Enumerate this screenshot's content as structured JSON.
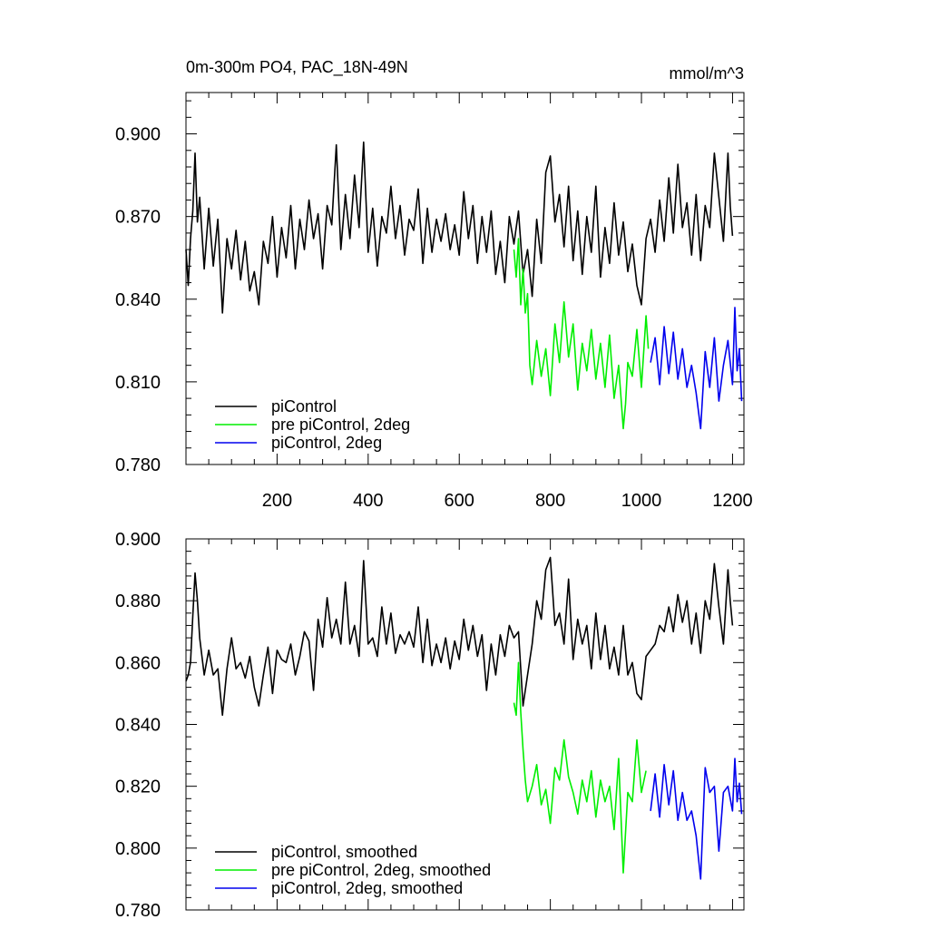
{
  "chart_data": [
    {
      "type": "line",
      "title": "0m-300m PO4, PAC_18N-49N",
      "units": "mmol/m^3",
      "xlim": [
        0,
        1225
      ],
      "ylim": [
        0.78,
        0.915
      ],
      "xticks": [
        200,
        400,
        600,
        800,
        1000,
        1200
      ],
      "yticks": [
        0.78,
        0.81,
        0.84,
        0.87,
        0.9
      ],
      "ytick_labels": [
        "0.780",
        "0.810",
        "0.840",
        "0.870",
        "0.900"
      ],
      "xtick_labels": [
        "200",
        "400",
        "600",
        "800",
        "1000",
        "1200"
      ],
      "legend_position": "bottom-left",
      "series": [
        {
          "name": "piControl",
          "color": "#000000",
          "x": [
            0,
            5,
            10,
            15,
            20,
            25,
            30,
            40,
            50,
            60,
            70,
            80,
            90,
            100,
            110,
            120,
            130,
            140,
            150,
            160,
            170,
            180,
            190,
            200,
            210,
            220,
            230,
            240,
            250,
            260,
            270,
            280,
            290,
            300,
            310,
            320,
            330,
            340,
            350,
            360,
            370,
            380,
            390,
            400,
            410,
            420,
            430,
            440,
            450,
            460,
            470,
            480,
            490,
            500,
            510,
            520,
            530,
            540,
            550,
            560,
            570,
            580,
            590,
            600,
            610,
            620,
            630,
            640,
            650,
            660,
            670,
            680,
            690,
            700,
            710,
            720,
            730,
            740,
            750,
            760,
            770,
            780,
            790,
            800,
            810,
            820,
            830,
            840,
            850,
            860,
            870,
            880,
            890,
            900,
            910,
            920,
            930,
            940,
            950,
            960,
            970,
            980,
            990,
            1000,
            1010,
            1020,
            1030,
            1040,
            1050,
            1060,
            1070,
            1080,
            1090,
            1100,
            1110,
            1120,
            1130,
            1140,
            1150,
            1160,
            1170,
            1180,
            1190,
            1195,
            1200
          ],
          "values": [
            0.858,
            0.845,
            0.862,
            0.872,
            0.893,
            0.868,
            0.877,
            0.851,
            0.873,
            0.852,
            0.869,
            0.835,
            0.862,
            0.851,
            0.865,
            0.847,
            0.861,
            0.843,
            0.85,
            0.838,
            0.861,
            0.853,
            0.87,
            0.848,
            0.866,
            0.855,
            0.874,
            0.851,
            0.869,
            0.858,
            0.876,
            0.862,
            0.871,
            0.851,
            0.874,
            0.867,
            0.896,
            0.858,
            0.878,
            0.862,
            0.885,
            0.866,
            0.897,
            0.857,
            0.873,
            0.852,
            0.87,
            0.864,
            0.881,
            0.862,
            0.874,
            0.856,
            0.869,
            0.865,
            0.88,
            0.853,
            0.873,
            0.857,
            0.869,
            0.861,
            0.871,
            0.858,
            0.867,
            0.856,
            0.879,
            0.862,
            0.874,
            0.853,
            0.87,
            0.857,
            0.872,
            0.849,
            0.861,
            0.846,
            0.87,
            0.86,
            0.872,
            0.849,
            0.858,
            0.841,
            0.869,
            0.853,
            0.886,
            0.892,
            0.868,
            0.878,
            0.859,
            0.881,
            0.854,
            0.872,
            0.849,
            0.87,
            0.857,
            0.881,
            0.848,
            0.866,
            0.853,
            0.875,
            0.856,
            0.868,
            0.85,
            0.86,
            0.845,
            0.838,
            0.862,
            0.869,
            0.857,
            0.876,
            0.861,
            0.884,
            0.864,
            0.889,
            0.866,
            0.875,
            0.856,
            0.878,
            0.854,
            0.874,
            0.866,
            0.893,
            0.877,
            0.861,
            0.893,
            0.874,
            0.863
          ]
        },
        {
          "name": "pre piControl, 2deg",
          "color": "#00ee00",
          "x": [
            720,
            725,
            730,
            735,
            740,
            745,
            750,
            755,
            760,
            770,
            780,
            790,
            800,
            810,
            820,
            830,
            840,
            850,
            860,
            870,
            880,
            890,
            900,
            910,
            920,
            930,
            940,
            950,
            960,
            965,
            970,
            980,
            990,
            1000,
            1010,
            1015
          ],
          "values": [
            0.858,
            0.848,
            0.862,
            0.838,
            0.851,
            0.835,
            0.842,
            0.816,
            0.809,
            0.825,
            0.812,
            0.822,
            0.805,
            0.831,
            0.817,
            0.839,
            0.819,
            0.831,
            0.807,
            0.824,
            0.814,
            0.829,
            0.811,
            0.824,
            0.808,
            0.827,
            0.804,
            0.816,
            0.793,
            0.802,
            0.817,
            0.812,
            0.829,
            0.808,
            0.834,
            0.822
          ]
        },
        {
          "name": "piControl, 2deg",
          "color": "#0000ee",
          "x": [
            1020,
            1030,
            1040,
            1050,
            1060,
            1070,
            1080,
            1090,
            1100,
            1110,
            1120,
            1130,
            1140,
            1150,
            1160,
            1170,
            1180,
            1190,
            1200,
            1205,
            1210,
            1215,
            1220
          ],
          "values": [
            0.817,
            0.826,
            0.809,
            0.83,
            0.813,
            0.828,
            0.811,
            0.822,
            0.808,
            0.816,
            0.806,
            0.793,
            0.821,
            0.808,
            0.826,
            0.803,
            0.816,
            0.825,
            0.809,
            0.837,
            0.814,
            0.822,
            0.803
          ]
        }
      ]
    },
    {
      "type": "line",
      "xlim": [
        0,
        1225
      ],
      "ylim": [
        0.78,
        0.9
      ],
      "yticks": [
        0.78,
        0.8,
        0.82,
        0.84,
        0.86,
        0.88,
        0.9
      ],
      "ytick_labels": [
        "0.780",
        "0.800",
        "0.820",
        "0.840",
        "0.860",
        "0.880",
        "0.900"
      ],
      "xticks": [
        200,
        400,
        600,
        800,
        1000,
        1200
      ],
      "legend_position": "bottom-left",
      "series": [
        {
          "name": "piControl, smoothed",
          "color": "#000000",
          "x": [
            0,
            5,
            10,
            15,
            20,
            25,
            30,
            40,
            50,
            60,
            70,
            80,
            90,
            100,
            110,
            120,
            130,
            140,
            150,
            160,
            170,
            180,
            190,
            200,
            210,
            220,
            230,
            240,
            250,
            260,
            270,
            280,
            290,
            300,
            310,
            320,
            330,
            340,
            350,
            360,
            370,
            380,
            390,
            400,
            410,
            420,
            430,
            440,
            450,
            460,
            470,
            480,
            490,
            500,
            510,
            520,
            530,
            540,
            550,
            560,
            570,
            580,
            590,
            600,
            610,
            620,
            630,
            640,
            650,
            660,
            670,
            680,
            690,
            700,
            710,
            720,
            730,
            740,
            750,
            760,
            770,
            780,
            790,
            800,
            810,
            820,
            830,
            840,
            850,
            860,
            870,
            880,
            890,
            900,
            910,
            920,
            930,
            940,
            950,
            960,
            970,
            980,
            990,
            1000,
            1010,
            1020,
            1030,
            1040,
            1050,
            1060,
            1070,
            1080,
            1090,
            1100,
            1110,
            1120,
            1130,
            1140,
            1150,
            1160,
            1170,
            1180,
            1190,
            1195,
            1200
          ],
          "values": [
            0.854,
            0.856,
            0.86,
            0.875,
            0.889,
            0.88,
            0.868,
            0.856,
            0.864,
            0.856,
            0.858,
            0.843,
            0.858,
            0.868,
            0.858,
            0.86,
            0.855,
            0.862,
            0.852,
            0.846,
            0.856,
            0.865,
            0.85,
            0.864,
            0.861,
            0.86,
            0.866,
            0.856,
            0.862,
            0.87,
            0.867,
            0.851,
            0.874,
            0.865,
            0.881,
            0.868,
            0.874,
            0.866,
            0.886,
            0.866,
            0.872,
            0.862,
            0.893,
            0.866,
            0.868,
            0.862,
            0.878,
            0.866,
            0.876,
            0.863,
            0.869,
            0.866,
            0.87,
            0.865,
            0.878,
            0.86,
            0.874,
            0.859,
            0.866,
            0.86,
            0.868,
            0.858,
            0.867,
            0.861,
            0.874,
            0.864,
            0.872,
            0.862,
            0.869,
            0.851,
            0.866,
            0.856,
            0.869,
            0.862,
            0.872,
            0.868,
            0.87,
            0.846,
            0.856,
            0.866,
            0.88,
            0.874,
            0.89,
            0.894,
            0.872,
            0.876,
            0.866,
            0.887,
            0.861,
            0.874,
            0.866,
            0.872,
            0.858,
            0.876,
            0.861,
            0.872,
            0.858,
            0.865,
            0.856,
            0.872,
            0.856,
            0.86,
            0.85,
            0.848,
            0.862,
            0.864,
            0.866,
            0.872,
            0.87,
            0.878,
            0.87,
            0.882,
            0.873,
            0.88,
            0.866,
            0.876,
            0.863,
            0.88,
            0.874,
            0.892,
            0.878,
            0.866,
            0.89,
            0.88,
            0.872
          ]
        },
        {
          "name": "pre piControl, 2deg, smoothed",
          "color": "#00ee00",
          "x": [
            720,
            725,
            730,
            735,
            740,
            745,
            750,
            760,
            770,
            780,
            790,
            800,
            810,
            820,
            830,
            840,
            850,
            860,
            870,
            880,
            890,
            900,
            910,
            920,
            930,
            940,
            950,
            960,
            970,
            980,
            990,
            1000,
            1010
          ],
          "values": [
            0.847,
            0.843,
            0.86,
            0.844,
            0.832,
            0.822,
            0.815,
            0.82,
            0.827,
            0.814,
            0.819,
            0.808,
            0.826,
            0.822,
            0.835,
            0.823,
            0.818,
            0.811,
            0.822,
            0.815,
            0.825,
            0.81,
            0.822,
            0.815,
            0.82,
            0.806,
            0.829,
            0.792,
            0.818,
            0.815,
            0.835,
            0.818,
            0.825
          ]
        },
        {
          "name": "piControl, 2deg, smoothed",
          "color": "#0000ee",
          "x": [
            1020,
            1030,
            1040,
            1050,
            1060,
            1070,
            1080,
            1090,
            1100,
            1110,
            1120,
            1130,
            1140,
            1150,
            1160,
            1170,
            1180,
            1190,
            1200,
            1205,
            1210,
            1215,
            1220
          ],
          "values": [
            0.812,
            0.824,
            0.81,
            0.827,
            0.814,
            0.825,
            0.809,
            0.818,
            0.809,
            0.812,
            0.804,
            0.79,
            0.826,
            0.818,
            0.82,
            0.799,
            0.818,
            0.82,
            0.812,
            0.829,
            0.815,
            0.821,
            0.811
          ]
        }
      ]
    }
  ]
}
